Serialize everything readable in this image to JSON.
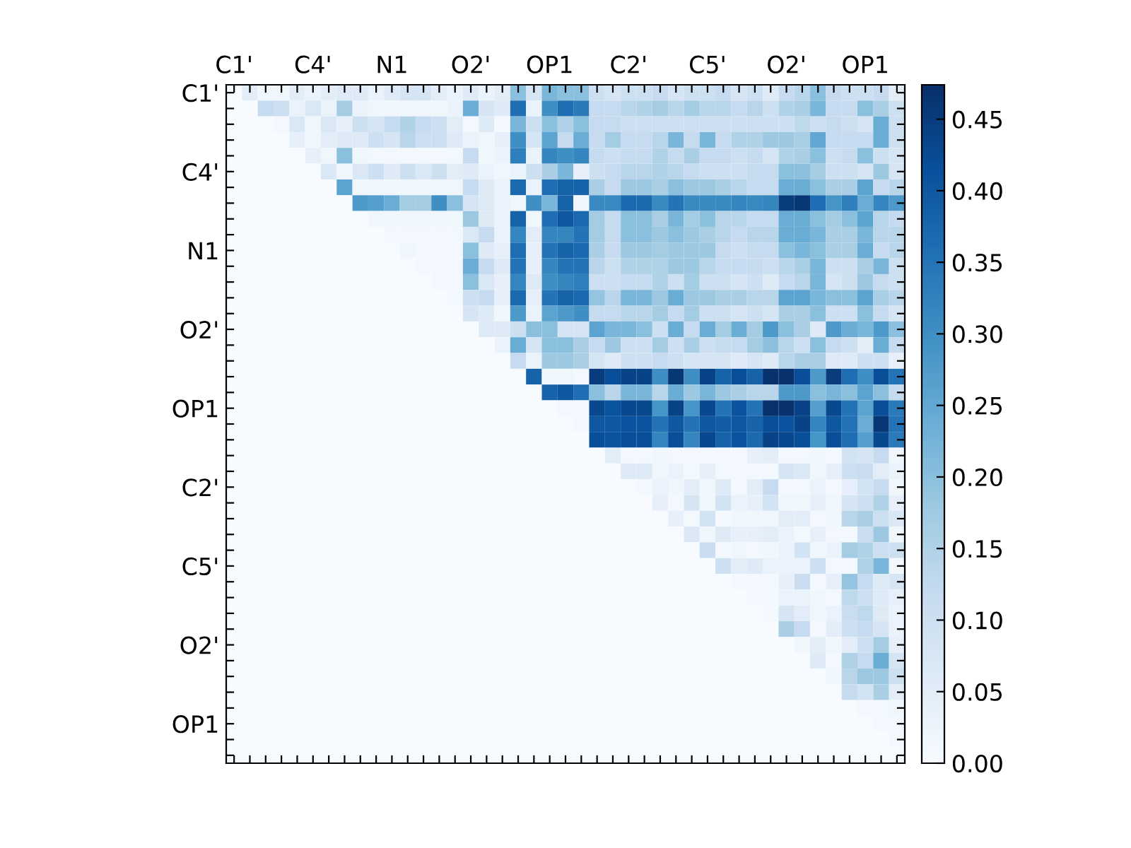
{
  "chart_data": {
    "type": "heatmap",
    "categories": [
      "C1'",
      null,
      null,
      null,
      null,
      "C4'",
      null,
      null,
      null,
      null,
      "N1",
      null,
      null,
      null,
      null,
      "O2'",
      null,
      null,
      null,
      null,
      "OP1",
      null,
      null,
      null,
      null,
      "C2'",
      null,
      null,
      null,
      null,
      "C5'",
      null,
      null,
      null,
      null,
      "O2'",
      null,
      null,
      null,
      null,
      "OP1",
      null,
      null
    ],
    "y_categories": [
      "C1'",
      null,
      null,
      null,
      null,
      "C4'",
      null,
      null,
      null,
      null,
      "N1",
      null,
      null,
      null,
      null,
      "O2'",
      null,
      null,
      null,
      null,
      "OP1",
      null,
      null,
      null,
      null,
      "C2'",
      null,
      null,
      null,
      null,
      "C5'",
      null,
      null,
      null,
      null,
      "O2'",
      null,
      null,
      null,
      null,
      "OP1",
      null,
      null
    ],
    "clim": [
      0,
      0.474
    ],
    "cticks": [
      {
        "value": 0,
        "label": "0.00"
      },
      0.05,
      {
        "value": 0.1,
        "label": "0.10"
      },
      0.15,
      {
        "value": 0.2,
        "label": "0.20"
      },
      0.25,
      {
        "value": 0.3,
        "label": "0.30"
      },
      0.35,
      {
        "value": 0.4,
        "label": "0.40"
      },
      0.45
    ],
    "cells": [
      [
        0,
        0.05,
        0.02,
        0.02,
        0.05,
        0.03,
        0.05,
        0.06,
        0.06,
        0.03,
        0.06,
        0.08,
        0.08,
        0.05,
        0.03,
        0.06,
        0.03,
        0.05,
        0.2,
        0.08,
        0.22,
        0.2,
        0.2,
        0.1,
        0.08,
        0.1,
        0.1,
        0.12,
        0.08,
        0.1,
        0.1,
        0.12,
        0.08,
        0.1,
        0.06,
        0.12,
        0.14,
        0.2,
        0.12,
        0.1,
        0.1,
        0.12,
        0.05
      ],
      [
        0,
        0,
        0.12,
        0.1,
        0.03,
        0.07,
        0.03,
        0.17,
        0.03,
        0.02,
        0.02,
        0.02,
        0.02,
        0.02,
        0.03,
        0.24,
        0.08,
        0.06,
        0.36,
        0.03,
        0.3,
        0.36,
        0.34,
        0.12,
        0.12,
        0.14,
        0.15,
        0.17,
        0.14,
        0.17,
        0.14,
        0.14,
        0.12,
        0.14,
        0.1,
        0.15,
        0.16,
        0.22,
        0.12,
        0.12,
        0.2,
        0.16,
        0.1
      ],
      [
        0,
        0,
        0,
        0.01,
        0.07,
        0.02,
        0.07,
        0.04,
        0.1,
        0.08,
        0.12,
        0.15,
        0.12,
        0.1,
        0.05,
        0.01,
        0.06,
        0.01,
        0.22,
        0.1,
        0.2,
        0.15,
        0.2,
        0.12,
        0.12,
        0.1,
        0.1,
        0.1,
        0.1,
        0.1,
        0.1,
        0.1,
        0.1,
        0.1,
        0.1,
        0.1,
        0.13,
        0.1,
        0.12,
        0.1,
        0.08,
        0.24,
        0.1
      ],
      [
        0,
        0,
        0,
        0,
        0.04,
        0.02,
        0.05,
        0.06,
        0.06,
        0.1,
        0.08,
        0.14,
        0.1,
        0.1,
        0.06,
        0.03,
        0.02,
        0.04,
        0.3,
        0.08,
        0.26,
        0.12,
        0.24,
        0.12,
        0.17,
        0.12,
        0.12,
        0.14,
        0.22,
        0.12,
        0.22,
        0.12,
        0.15,
        0.15,
        0.18,
        0.18,
        0.16,
        0.25,
        0.12,
        0.12,
        0.12,
        0.24,
        0.1
      ],
      [
        0,
        0,
        0,
        0,
        0,
        0.04,
        0.02,
        0.2,
        0.02,
        0.01,
        0.01,
        0.01,
        0.01,
        0.01,
        0.01,
        0.12,
        0.02,
        0.03,
        0.33,
        0.03,
        0.32,
        0.3,
        0.32,
        0.12,
        0.1,
        0.12,
        0.12,
        0.15,
        0.12,
        0.16,
        0.12,
        0.12,
        0.1,
        0.12,
        0.08,
        0.15,
        0.16,
        0.2,
        0.1,
        0.12,
        0.2,
        0.1,
        0.08
      ],
      [
        0,
        0,
        0,
        0,
        0,
        0,
        0.07,
        0.02,
        0.07,
        0.1,
        0.06,
        0.1,
        0.07,
        0.1,
        0.05,
        0.06,
        0.03,
        0.02,
        0.03,
        0.1,
        0.16,
        0.22,
        0.04,
        0.1,
        0.12,
        0.14,
        0.14,
        0.15,
        0.14,
        0.12,
        0.1,
        0.1,
        0.1,
        0.12,
        0.12,
        0.2,
        0.2,
        0.17,
        0.1,
        0.1,
        0.08,
        0.18,
        0.08
      ],
      [
        0,
        0,
        0,
        0,
        0,
        0,
        0,
        0.26,
        0.02,
        0.02,
        0.02,
        0.02,
        0.02,
        0.02,
        0.02,
        0.12,
        0.06,
        0.03,
        0.37,
        0.03,
        0.36,
        0.38,
        0.38,
        0.16,
        0.12,
        0.18,
        0.18,
        0.16,
        0.2,
        0.18,
        0.18,
        0.16,
        0.14,
        0.12,
        0.12,
        0.24,
        0.24,
        0.2,
        0.16,
        0.16,
        0.26,
        0.12,
        0.14
      ],
      [
        0,
        0,
        0,
        0,
        0,
        0,
        0,
        0,
        0.28,
        0.27,
        0.24,
        0.17,
        0.17,
        0.3,
        0.2,
        0.08,
        0.06,
        0.03,
        0.02,
        0.3,
        0.22,
        0.38,
        0.02,
        0.31,
        0.31,
        0.37,
        0.37,
        0.31,
        0.35,
        0.31,
        0.31,
        0.31,
        0.32,
        0.31,
        0.32,
        0.45,
        0.46,
        0.36,
        0.29,
        0.33,
        0.24,
        0.32,
        0.28
      ],
      [
        0,
        0,
        0,
        0,
        0,
        0,
        0,
        0,
        0,
        0.02,
        0.02,
        0.02,
        0.02,
        0.02,
        0.02,
        0.18,
        0.06,
        0.03,
        0.38,
        0.02,
        0.36,
        0.4,
        0.37,
        0.17,
        0.12,
        0.2,
        0.2,
        0.16,
        0.22,
        0.17,
        0.2,
        0.14,
        0.14,
        0.12,
        0.12,
        0.24,
        0.24,
        0.2,
        0.17,
        0.2,
        0.26,
        0.14,
        0.12
      ],
      [
        0,
        0,
        0,
        0,
        0,
        0,
        0,
        0,
        0,
        0,
        0.01,
        0.01,
        0.01,
        0.01,
        0.01,
        0.07,
        0.12,
        0.03,
        0.32,
        0.05,
        0.32,
        0.32,
        0.35,
        0.17,
        0.12,
        0.2,
        0.2,
        0.18,
        0.2,
        0.18,
        0.16,
        0.14,
        0.12,
        0.14,
        0.14,
        0.24,
        0.24,
        0.22,
        0.16,
        0.16,
        0.22,
        0.14,
        0.14
      ],
      [
        0,
        0,
        0,
        0,
        0,
        0,
        0,
        0,
        0,
        0,
        0,
        0.02,
        0.01,
        0.01,
        0.01,
        0.2,
        0.06,
        0.04,
        0.36,
        0.04,
        0.35,
        0.38,
        0.37,
        0.16,
        0.12,
        0.18,
        0.18,
        0.17,
        0.18,
        0.18,
        0.18,
        0.12,
        0.1,
        0.12,
        0.12,
        0.2,
        0.22,
        0.2,
        0.16,
        0.16,
        0.24,
        0.12,
        0.14
      ],
      [
        0,
        0,
        0,
        0,
        0,
        0,
        0,
        0,
        0,
        0,
        0,
        0,
        0.01,
        0.01,
        0.01,
        0.24,
        0.12,
        0.06,
        0.35,
        0.04,
        0.32,
        0.35,
        0.35,
        0.14,
        0.1,
        0.15,
        0.15,
        0.15,
        0.18,
        0.18,
        0.14,
        0.12,
        0.12,
        0.12,
        0.1,
        0.14,
        0.16,
        0.22,
        0.1,
        0.1,
        0.16,
        0.22,
        0.1
      ],
      [
        0,
        0,
        0,
        0,
        0,
        0,
        0,
        0,
        0,
        0,
        0,
        0,
        0,
        0.01,
        0.01,
        0.2,
        0.07,
        0.04,
        0.32,
        0.06,
        0.3,
        0.32,
        0.33,
        0.1,
        0.1,
        0.12,
        0.12,
        0.15,
        0.1,
        0.17,
        0.1,
        0.1,
        0.08,
        0.1,
        0.06,
        0.12,
        0.14,
        0.22,
        0.08,
        0.1,
        0.18,
        0.12,
        0.1
      ],
      [
        0,
        0,
        0,
        0,
        0,
        0,
        0,
        0,
        0,
        0,
        0,
        0,
        0,
        0,
        0.01,
        0.1,
        0.12,
        0.04,
        0.37,
        0.04,
        0.35,
        0.38,
        0.37,
        0.19,
        0.14,
        0.22,
        0.22,
        0.18,
        0.24,
        0.18,
        0.18,
        0.16,
        0.16,
        0.14,
        0.14,
        0.26,
        0.26,
        0.22,
        0.2,
        0.2,
        0.26,
        0.16,
        0.14
      ],
      [
        0,
        0,
        0,
        0,
        0,
        0,
        0,
        0,
        0,
        0,
        0,
        0,
        0,
        0,
        0,
        0.08,
        0.06,
        0.02,
        0.28,
        0.03,
        0.26,
        0.28,
        0.3,
        0.12,
        0.12,
        0.14,
        0.14,
        0.17,
        0.12,
        0.17,
        0.1,
        0.1,
        0.08,
        0.1,
        0.08,
        0.16,
        0.16,
        0.2,
        0.1,
        0.1,
        0.2,
        0.12,
        0.08
      ],
      [
        0,
        0,
        0,
        0,
        0,
        0,
        0,
        0,
        0,
        0,
        0,
        0,
        0,
        0,
        0,
        0,
        0.06,
        0.06,
        0.1,
        0.2,
        0.2,
        0.08,
        0.08,
        0.26,
        0.22,
        0.22,
        0.2,
        0.1,
        0.24,
        0.12,
        0.24,
        0.17,
        0.24,
        0.17,
        0.28,
        0.2,
        0.16,
        0.06,
        0.28,
        0.24,
        0.22,
        0.28,
        0.2
      ],
      [
        0,
        0,
        0,
        0,
        0,
        0,
        0,
        0,
        0,
        0,
        0,
        0,
        0,
        0,
        0,
        0,
        0,
        0.03,
        0.24,
        0.08,
        0.2,
        0.2,
        0.16,
        0.12,
        0.18,
        0.1,
        0.1,
        0.17,
        0.1,
        0.16,
        0.1,
        0.12,
        0.12,
        0.17,
        0.2,
        0.14,
        0.1,
        0.2,
        0.12,
        0.1,
        0.05,
        0.24,
        0.12
      ],
      [
        0,
        0,
        0,
        0,
        0,
        0,
        0,
        0,
        0,
        0,
        0,
        0,
        0,
        0,
        0,
        0,
        0,
        0,
        0.12,
        0.03,
        0.18,
        0.18,
        0.16,
        0.08,
        0.06,
        0.1,
        0.1,
        0.12,
        0.1,
        0.08,
        0.08,
        0.08,
        0.06,
        0.08,
        0.06,
        0.14,
        0.16,
        0.16,
        0.06,
        0.06,
        0.1,
        0.1,
        0.04
      ],
      [
        0,
        0,
        0,
        0,
        0,
        0,
        0,
        0,
        0,
        0,
        0,
        0,
        0,
        0,
        0,
        0,
        0,
        0,
        0,
        0.38,
        0.02,
        0.02,
        0.01,
        0.45,
        0.42,
        0.44,
        0.44,
        0.3,
        0.46,
        0.3,
        0.44,
        0.38,
        0.42,
        0.38,
        0.47,
        0.47,
        0.42,
        0.28,
        0.45,
        0.36,
        0.3,
        0.42,
        0.35
      ],
      [
        0,
        0,
        0,
        0,
        0,
        0,
        0,
        0,
        0,
        0,
        0,
        0,
        0,
        0,
        0,
        0,
        0,
        0,
        0,
        0,
        0.38,
        0.4,
        0.36,
        0.2,
        0.14,
        0.22,
        0.22,
        0.14,
        0.24,
        0.18,
        0.22,
        0.18,
        0.16,
        0.14,
        0.14,
        0.28,
        0.28,
        0.2,
        0.22,
        0.2,
        0.26,
        0.2,
        0.12
      ],
      [
        0,
        0,
        0,
        0,
        0,
        0,
        0,
        0,
        0,
        0,
        0,
        0,
        0,
        0,
        0,
        0,
        0,
        0,
        0,
        0,
        0,
        0.01,
        0.01,
        0.43,
        0.41,
        0.43,
        0.43,
        0.29,
        0.44,
        0.29,
        0.43,
        0.35,
        0.41,
        0.35,
        0.47,
        0.47,
        0.44,
        0.27,
        0.43,
        0.35,
        0.26,
        0.42,
        0.34
      ],
      [
        0,
        0,
        0,
        0,
        0,
        0,
        0,
        0,
        0,
        0,
        0,
        0,
        0,
        0,
        0,
        0,
        0,
        0,
        0,
        0,
        0,
        0,
        0.01,
        0.4,
        0.4,
        0.41,
        0.41,
        0.35,
        0.4,
        0.35,
        0.4,
        0.39,
        0.4,
        0.38,
        0.42,
        0.41,
        0.44,
        0.32,
        0.4,
        0.35,
        0.24,
        0.46,
        0.35
      ],
      [
        0,
        0,
        0,
        0,
        0,
        0,
        0,
        0,
        0,
        0,
        0,
        0,
        0,
        0,
        0,
        0,
        0,
        0,
        0,
        0,
        0,
        0,
        0,
        0.42,
        0.41,
        0.42,
        0.42,
        0.32,
        0.42,
        0.32,
        0.43,
        0.38,
        0.41,
        0.37,
        0.44,
        0.43,
        0.42,
        0.29,
        0.42,
        0.36,
        0.27,
        0.43,
        0.34
      ],
      [
        0,
        0,
        0,
        0,
        0,
        0,
        0,
        0,
        0,
        0,
        0,
        0,
        0,
        0,
        0,
        0,
        0,
        0,
        0,
        0,
        0,
        0,
        0,
        0,
        0.05,
        0.01,
        0.01,
        0.02,
        0.01,
        0.01,
        0.01,
        0.01,
        0.01,
        0.04,
        0.05,
        0.01,
        0.01,
        0.02,
        0.01,
        0.09,
        0.08,
        0.12,
        0.02
      ],
      [
        0,
        0,
        0,
        0,
        0,
        0,
        0,
        0,
        0,
        0,
        0,
        0,
        0,
        0,
        0,
        0,
        0,
        0,
        0,
        0,
        0,
        0,
        0,
        0,
        0,
        0.06,
        0.06,
        0.02,
        0.03,
        0.01,
        0.04,
        0.01,
        0.01,
        0.01,
        0.01,
        0.08,
        0.07,
        0.02,
        0.04,
        0.1,
        0.11,
        0.05,
        0.03
      ],
      [
        0,
        0,
        0,
        0,
        0,
        0,
        0,
        0,
        0,
        0,
        0,
        0,
        0,
        0,
        0,
        0,
        0,
        0,
        0,
        0,
        0,
        0,
        0,
        0,
        0,
        0,
        0.01,
        0.03,
        0.02,
        0.05,
        0.02,
        0.06,
        0.01,
        0.05,
        0.12,
        0.01,
        0.01,
        0.03,
        0.01,
        0.04,
        0.09,
        0.12,
        0.02
      ],
      [
        0,
        0,
        0,
        0,
        0,
        0,
        0,
        0,
        0,
        0,
        0,
        0,
        0,
        0,
        0,
        0,
        0,
        0,
        0,
        0,
        0,
        0,
        0,
        0,
        0,
        0,
        0,
        0.04,
        0.01,
        0.08,
        0.02,
        0.09,
        0.03,
        0.04,
        0.09,
        0.02,
        0.02,
        0.04,
        0.02,
        0.08,
        0.1,
        0.15,
        0.04
      ],
      [
        0,
        0,
        0,
        0,
        0,
        0,
        0,
        0,
        0,
        0,
        0,
        0,
        0,
        0,
        0,
        0,
        0,
        0,
        0,
        0,
        0,
        0,
        0,
        0,
        0,
        0,
        0,
        0,
        0.04,
        0.01,
        0.09,
        0.01,
        0.02,
        0.02,
        0.02,
        0.05,
        0.05,
        0.01,
        0.02,
        0.14,
        0.16,
        0.1,
        0.07
      ],
      [
        0,
        0,
        0,
        0,
        0,
        0,
        0,
        0,
        0,
        0,
        0,
        0,
        0,
        0,
        0,
        0,
        0,
        0,
        0,
        0,
        0,
        0,
        0,
        0,
        0,
        0,
        0,
        0,
        0,
        0.07,
        0.02,
        0.06,
        0.04,
        0.04,
        0.05,
        0.03,
        0.01,
        0.04,
        0.01,
        0.01,
        0.11,
        0.18,
        0.02
      ],
      [
        0,
        0,
        0,
        0,
        0,
        0,
        0,
        0,
        0,
        0,
        0,
        0,
        0,
        0,
        0,
        0,
        0,
        0,
        0,
        0,
        0,
        0,
        0,
        0,
        0,
        0,
        0,
        0,
        0,
        0,
        0.11,
        0.01,
        0.02,
        0.01,
        0.02,
        0.03,
        0.09,
        0.02,
        0.03,
        0.17,
        0.15,
        0.1,
        0.1
      ],
      [
        0,
        0,
        0,
        0,
        0,
        0,
        0,
        0,
        0,
        0,
        0,
        0,
        0,
        0,
        0,
        0,
        0,
        0,
        0,
        0,
        0,
        0,
        0,
        0,
        0,
        0,
        0,
        0,
        0,
        0,
        0,
        0.1,
        0.05,
        0.06,
        0.03,
        0.03,
        0.03,
        0.1,
        0.01,
        0.01,
        0.15,
        0.22,
        0.01
      ],
      [
        0,
        0,
        0,
        0,
        0,
        0,
        0,
        0,
        0,
        0,
        0,
        0,
        0,
        0,
        0,
        0,
        0,
        0,
        0,
        0,
        0,
        0,
        0,
        0,
        0,
        0,
        0,
        0,
        0,
        0,
        0,
        0,
        0.01,
        0.01,
        0.01,
        0.04,
        0.11,
        0.01,
        0.04,
        0.19,
        0.12,
        0.06,
        0.08
      ],
      [
        0,
        0,
        0,
        0,
        0,
        0,
        0,
        0,
        0,
        0,
        0,
        0,
        0,
        0,
        0,
        0,
        0,
        0,
        0,
        0,
        0,
        0,
        0,
        0,
        0,
        0,
        0,
        0,
        0,
        0,
        0,
        0,
        0,
        0.01,
        0.01,
        0.03,
        0.03,
        0.02,
        0.01,
        0.13,
        0.1,
        0.06,
        0.04
      ],
      [
        0,
        0,
        0,
        0,
        0,
        0,
        0,
        0,
        0,
        0,
        0,
        0,
        0,
        0,
        0,
        0,
        0,
        0,
        0,
        0,
        0,
        0,
        0,
        0,
        0,
        0,
        0,
        0,
        0,
        0,
        0,
        0,
        0,
        0,
        0.01,
        0.08,
        0.05,
        0.02,
        0.03,
        0.11,
        0.13,
        0.06,
        0.03
      ],
      [
        0,
        0,
        0,
        0,
        0,
        0,
        0,
        0,
        0,
        0,
        0,
        0,
        0,
        0,
        0,
        0,
        0,
        0,
        0,
        0,
        0,
        0,
        0,
        0,
        0,
        0,
        0,
        0,
        0,
        0,
        0,
        0,
        0,
        0,
        0,
        0.16,
        0.12,
        0.01,
        0.05,
        0.1,
        0.12,
        0.08,
        0.03
      ],
      [
        0,
        0,
        0,
        0,
        0,
        0,
        0,
        0,
        0,
        0,
        0,
        0,
        0,
        0,
        0,
        0,
        0,
        0,
        0,
        0,
        0,
        0,
        0,
        0,
        0,
        0,
        0,
        0,
        0,
        0,
        0,
        0,
        0,
        0,
        0,
        0,
        0.02,
        0.05,
        0.02,
        0.05,
        0.1,
        0.17,
        0.04
      ],
      [
        0,
        0,
        0,
        0,
        0,
        0,
        0,
        0,
        0,
        0,
        0,
        0,
        0,
        0,
        0,
        0,
        0,
        0,
        0,
        0,
        0,
        0,
        0,
        0,
        0,
        0,
        0,
        0,
        0,
        0,
        0,
        0,
        0,
        0,
        0,
        0,
        0,
        0.06,
        0.01,
        0.15,
        0.12,
        0.24,
        0.08
      ],
      [
        0,
        0,
        0,
        0,
        0,
        0,
        0,
        0,
        0,
        0,
        0,
        0,
        0,
        0,
        0,
        0,
        0,
        0,
        0,
        0,
        0,
        0,
        0,
        0,
        0,
        0,
        0,
        0,
        0,
        0,
        0,
        0,
        0,
        0,
        0,
        0,
        0,
        0,
        0.02,
        0.14,
        0.18,
        0.18,
        0.1
      ],
      [
        0,
        0,
        0,
        0,
        0,
        0,
        0,
        0,
        0,
        0,
        0,
        0,
        0,
        0,
        0,
        0,
        0,
        0,
        0,
        0,
        0,
        0,
        0,
        0,
        0,
        0,
        0,
        0,
        0,
        0,
        0,
        0,
        0,
        0,
        0,
        0,
        0,
        0,
        0,
        0.12,
        0.09,
        0.16,
        0.05
      ],
      [
        0,
        0,
        0,
        0,
        0,
        0,
        0,
        0,
        0,
        0,
        0,
        0,
        0,
        0,
        0,
        0,
        0,
        0,
        0,
        0,
        0,
        0,
        0,
        0,
        0,
        0,
        0,
        0,
        0,
        0,
        0,
        0,
        0,
        0,
        0,
        0,
        0,
        0,
        0,
        0,
        0.01,
        0.01,
        0.02
      ],
      [
        0,
        0,
        0,
        0,
        0,
        0,
        0,
        0,
        0,
        0,
        0,
        0,
        0,
        0,
        0,
        0,
        0,
        0,
        0,
        0,
        0,
        0,
        0,
        0,
        0,
        0,
        0,
        0,
        0,
        0,
        0,
        0,
        0,
        0,
        0,
        0,
        0,
        0,
        0,
        0,
        0,
        0.01,
        0.01
      ],
      [
        0,
        0,
        0,
        0,
        0,
        0,
        0,
        0,
        0,
        0,
        0,
        0,
        0,
        0,
        0,
        0,
        0,
        0,
        0,
        0,
        0,
        0,
        0,
        0,
        0,
        0,
        0,
        0,
        0,
        0,
        0,
        0,
        0,
        0,
        0,
        0,
        0,
        0,
        0,
        0,
        0,
        0,
        0.01
      ],
      [
        0,
        0,
        0,
        0,
        0,
        0,
        0,
        0,
        0,
        0,
        0,
        0,
        0,
        0,
        0,
        0,
        0,
        0,
        0,
        0,
        0,
        0,
        0,
        0,
        0,
        0,
        0,
        0,
        0,
        0,
        0,
        0,
        0,
        0,
        0,
        0,
        0,
        0,
        0,
        0,
        0,
        0,
        0
      ]
    ]
  }
}
